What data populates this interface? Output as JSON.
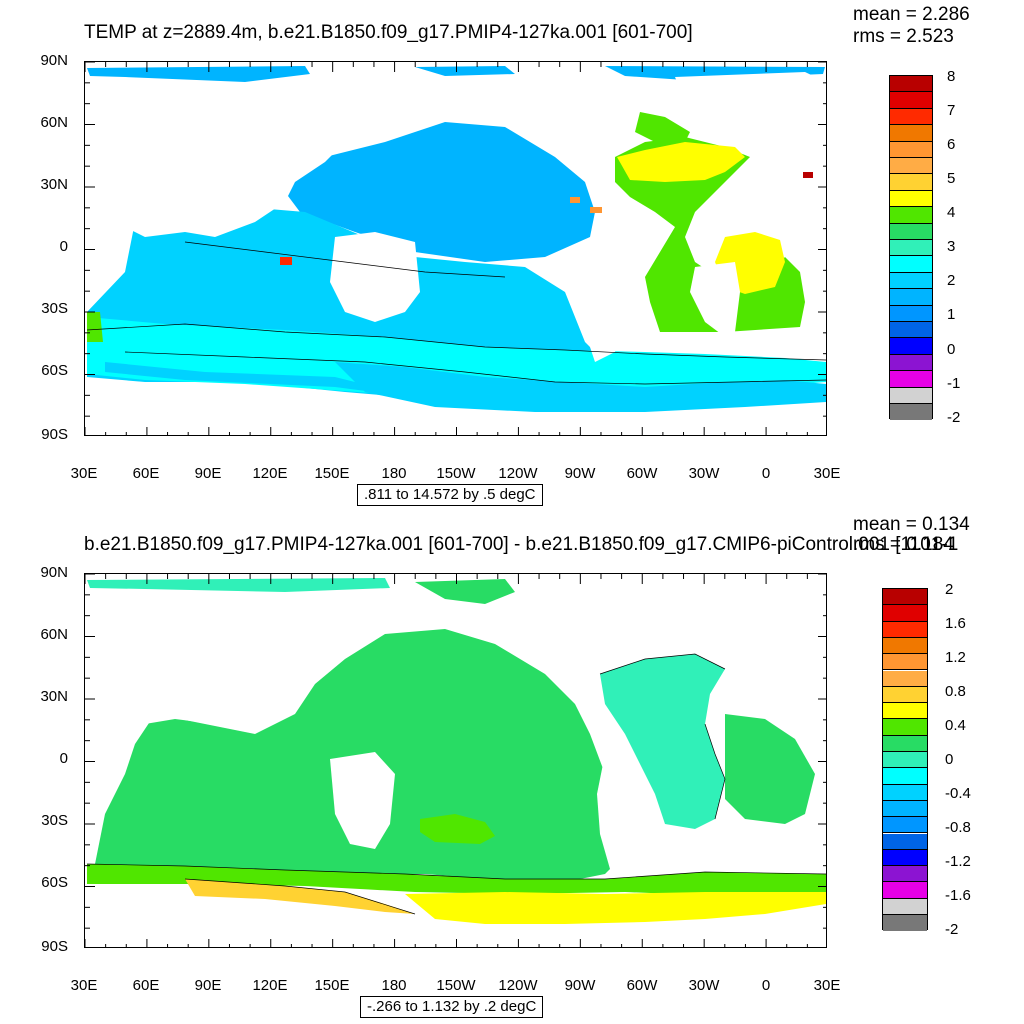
{
  "top": {
    "title": "TEMP at z=2889.4m, b.e21.B1850.f09_g17.PMIP4-127ka.001 [601-700]",
    "mean": "mean = 2.286",
    "rms": "rms = 2.523",
    "range": ".811 to 14.572 by .5 degC",
    "colorbar_labels": [
      "8",
      "7",
      "6",
      "5",
      "4",
      "3",
      "2",
      "1",
      "0",
      "-1",
      "-2"
    ],
    "colorbar_colors": [
      "#b80000",
      "#e00000",
      "#ff2a00",
      "#f07800",
      "#ff9632",
      "#ffac45",
      "#ffd232",
      "#ffff00",
      "#50e600",
      "#28dc64",
      "#30f0b8",
      "#00ffff",
      "#00d2ff",
      "#00b4ff",
      "#0096ff",
      "#0064e6",
      "#0000ff",
      "#8c14d2",
      "#e600e6",
      "#d2d2d2",
      "#787878"
    ]
  },
  "bottom": {
    "title": "b.e21.B1850.f09_g17.PMIP4-127ka.001 [601-700] - b.e21.B1850.f09_g17.CMIP6-piControl.001 [1101-1",
    "mean": "mean = 0.134",
    "rms": "rms = 0.184",
    "range": "-.266 to 1.132 by .2 degC",
    "colorbar_labels": [
      "2",
      "1.6",
      "1.2",
      "0.8",
      "0.4",
      "0",
      "-0.4",
      "-0.8",
      "-1.2",
      "-1.6",
      "-2"
    ],
    "colorbar_colors": [
      "#b80000",
      "#e00000",
      "#ff2a00",
      "#f07800",
      "#ff9632",
      "#ffac45",
      "#ffd232",
      "#ffff00",
      "#50e600",
      "#28dc64",
      "#30f0b8",
      "#00ffff",
      "#00d2ff",
      "#00b4ff",
      "#0096ff",
      "#0064e6",
      "#0000ff",
      "#8c14d2",
      "#e600e6",
      "#d2d2d2",
      "#787878"
    ]
  },
  "axes": {
    "lat_labels": [
      "90N",
      "60N",
      "30N",
      "0",
      "30S",
      "60S",
      "90S"
    ],
    "lon_labels": [
      "30E",
      "60E",
      "90E",
      "120E",
      "150E",
      "180",
      "150W",
      "120W",
      "90W",
      "60W",
      "30W",
      "0",
      "30E"
    ]
  }
}
